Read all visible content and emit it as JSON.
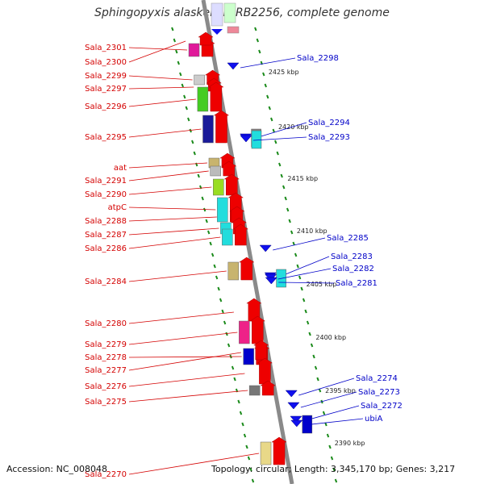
{
  "title": "Sphingopyxis alaskensis RB2256, complete genome",
  "footer": {
    "accession": "Accession: NC_008048",
    "topology": "Topology: circular; Length: 3,345,170 bp; Genes: 3,217"
  },
  "colors": {
    "forward_label": "#d40000",
    "reverse_label": "#0000c8",
    "backbone": "#8a8a8a",
    "tick": "#1a8a1a"
  },
  "kbp_marks": [
    "2425 kbp",
    "2420 kbp",
    "2415 kbp",
    "2410 kbp",
    "2405 kbp",
    "2400 kbp",
    "2395 kbp",
    "2390 kbp"
  ],
  "forward_genes": [
    "Sala_2301",
    "Sala_2300",
    "Sala_2299",
    "Sala_2297",
    "Sala_2296",
    "Sala_2295",
    "aat",
    "Sala_2291",
    "Sala_2290",
    "atpC",
    "Sala_2288",
    "Sala_2287",
    "Sala_2286",
    "Sala_2284",
    "Sala_2280",
    "Sala_2279",
    "Sala_2278",
    "Sala_2277",
    "Sala_2276",
    "Sala_2275",
    "Sala_2270"
  ],
  "reverse_genes": [
    "Sala_2298",
    "Sala_2294",
    "Sala_2293",
    "Sala_2285",
    "Sala_2283",
    "Sala_2282",
    "Sala_2281",
    "Sala_2274",
    "Sala_2273",
    "Sala_2272",
    "ubiA"
  ]
}
